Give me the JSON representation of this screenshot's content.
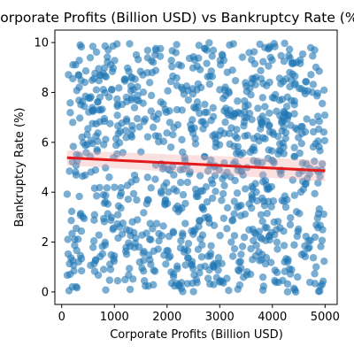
{
  "chart_data": {
    "type": "scatter",
    "title": "Corporate Profits (Billion USD) vs Bankruptcy Rate (%)",
    "xlabel": "Corporate Profits (Billion USD)",
    "ylabel": "Bankruptcy Rate (%)",
    "xlim": [
      -130,
      5230
    ],
    "ylim": [
      -0.5,
      10.5
    ],
    "xticks": [
      0,
      1000,
      2000,
      3000,
      4000,
      5000
    ],
    "yticks": [
      0,
      2,
      4,
      6,
      8,
      10
    ],
    "grid": false,
    "legend": "none",
    "n_points": 1000,
    "x_range": [
      100,
      5000
    ],
    "y_range": [
      0,
      10
    ],
    "trend_line": {
      "x": [
        100,
        5000
      ],
      "y": [
        5.38,
        4.86
      ]
    },
    "colors": {
      "points": "#1f77b4",
      "trend": "#e31a1c",
      "band": "#f4a6a6"
    }
  }
}
